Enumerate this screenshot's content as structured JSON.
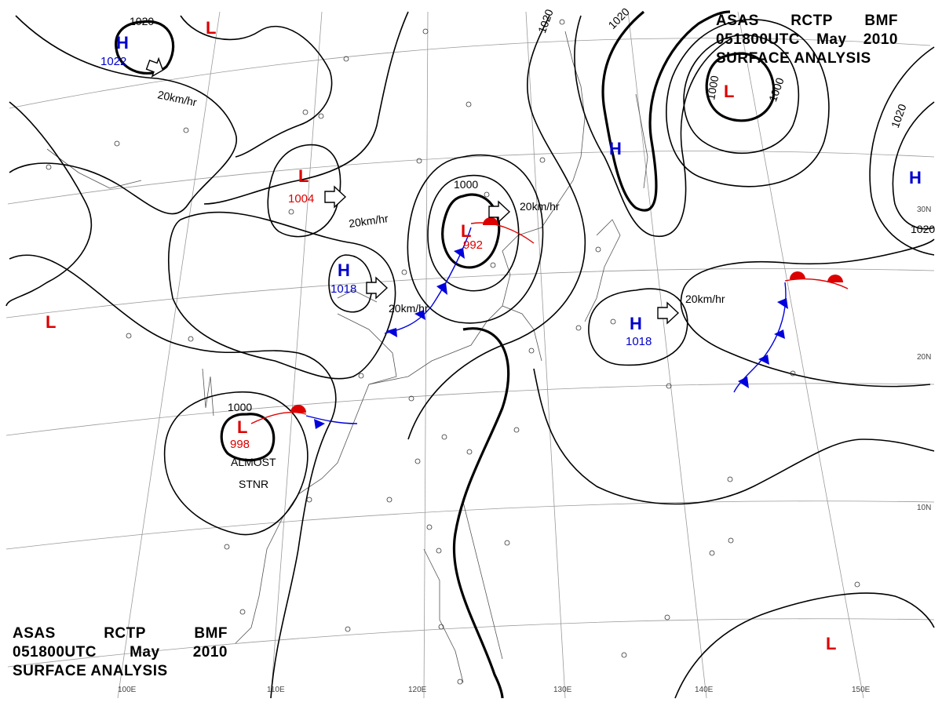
{
  "title": {
    "line1": [
      "ASAS",
      "RCTP",
      "BMF"
    ],
    "line2": [
      "051800UTC",
      "May",
      "2010"
    ],
    "line3": "SURFACE  ANALYSIS"
  },
  "lon_labels": [
    "100E",
    "110E",
    "120E",
    "130E",
    "140E",
    "150E"
  ],
  "lat_labels": [
    "30N",
    "20N",
    "10N"
  ],
  "pressure_systems": [
    {
      "type": "H",
      "value": "1022",
      "color": "#0000cc"
    },
    {
      "type": "L",
      "value": "",
      "color": "#dd0000"
    },
    {
      "type": "L",
      "value": "1004",
      "color": "#dd0000"
    },
    {
      "type": "H",
      "value": "1018",
      "color": "#0000cc"
    },
    {
      "type": "L",
      "value": "992",
      "color": "#dd0000"
    },
    {
      "type": "L",
      "value": "",
      "color": "#dd0000"
    },
    {
      "type": "H",
      "value": "",
      "color": "#0000cc"
    },
    {
      "type": "H",
      "value": "",
      "color": "#0000cc"
    },
    {
      "type": "H",
      "value": "1018",
      "color": "#0000cc"
    },
    {
      "type": "L",
      "value": "998",
      "color": "#dd0000"
    },
    {
      "type": "L",
      "value": "",
      "color": "#dd0000"
    },
    {
      "type": "L",
      "value": "",
      "color": "#dd0000"
    }
  ],
  "movements": [
    "20km/hr",
    "20km/hr",
    "20km/hr",
    "20km/hr",
    "20km/hr"
  ],
  "isobar_labels": [
    "1020",
    "1020",
    "1020",
    "1000",
    "1000",
    "1000",
    "1000",
    "1020",
    "1020"
  ],
  "notes": {
    "almost": "ALMOST",
    "stnr": "STNR"
  },
  "colors": {
    "low": "#dd0000",
    "high": "#0000cc",
    "cold_front": "#0000dd",
    "warm_front": "#dd0000"
  }
}
